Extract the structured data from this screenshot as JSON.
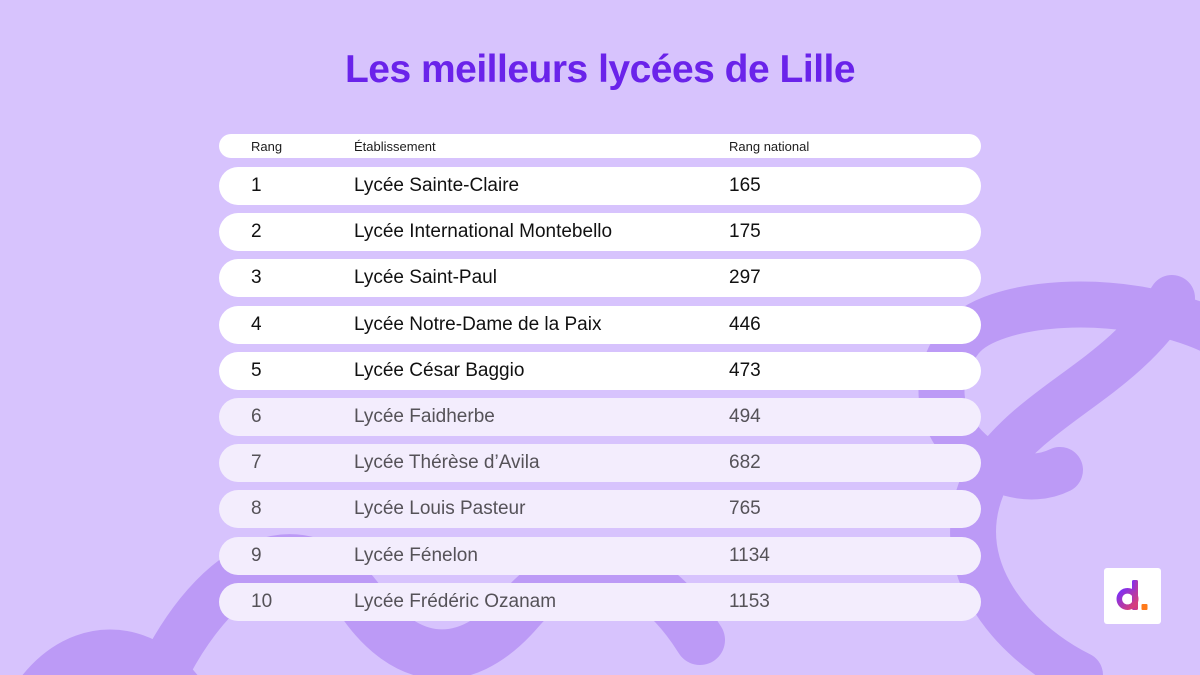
{
  "title": "Les meilleurs lycées de Lille",
  "table": {
    "headers": {
      "rank": "Rang",
      "name": "Établissement",
      "national": "Rang national"
    },
    "rows": [
      {
        "rank": "1",
        "name": "Lycée Sainte-Claire",
        "national": "165"
      },
      {
        "rank": "2",
        "name": "Lycée International Montebello",
        "national": "175"
      },
      {
        "rank": "3",
        "name": "Lycée Saint-Paul",
        "national": "297"
      },
      {
        "rank": "4",
        "name": "Lycée Notre-Dame de la Paix",
        "national": "446"
      },
      {
        "rank": "5",
        "name": "Lycée César Baggio",
        "national": "473"
      },
      {
        "rank": "6",
        "name": "Lycée Faidherbe",
        "national": "494"
      },
      {
        "rank": "7",
        "name": "Lycée Thérèse d’Avila",
        "national": "682"
      },
      {
        "rank": "8",
        "name": "Lycée Louis Pasteur",
        "national": "765"
      },
      {
        "rank": "9",
        "name": "Lycée Fénelon",
        "national": "1134"
      },
      {
        "rank": "10",
        "name": "Lycée Frédéric Ozanam",
        "national": "1153"
      }
    ]
  },
  "colors": {
    "background": "#d7c3fd",
    "title": "#6a23ea",
    "decor": "#bc9af6",
    "logo_gradient_start": "#7b2ff7",
    "logo_gradient_end": "#e0406e",
    "logo_dot": "#ff7a1a"
  },
  "logo": {
    "icon": "d-logo-icon"
  }
}
